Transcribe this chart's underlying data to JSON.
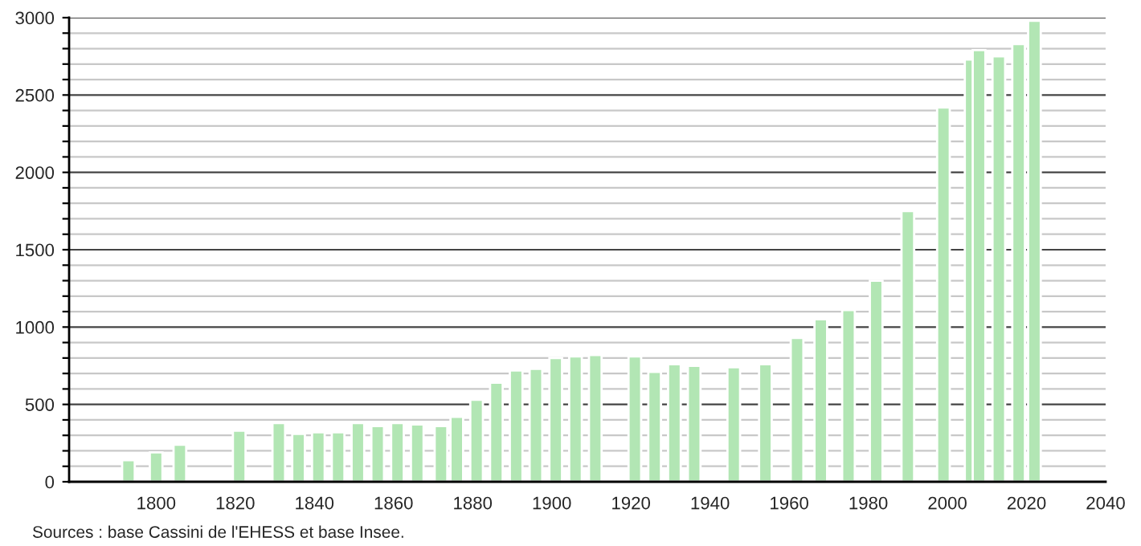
{
  "chart_data": {
    "type": "bar",
    "x": [
      1793,
      1800,
      1806,
      1821,
      1831,
      1836,
      1841,
      1846,
      1851,
      1856,
      1861,
      1866,
      1872,
      1876,
      1881,
      1886,
      1891,
      1896,
      1901,
      1906,
      1911,
      1921,
      1926,
      1931,
      1936,
      1946,
      1954,
      1962,
      1968,
      1975,
      1982,
      1990,
      1999,
      2006,
      2008,
      2013,
      2018,
      2022
    ],
    "values": [
      140,
      190,
      240,
      330,
      380,
      310,
      320,
      320,
      380,
      360,
      380,
      370,
      360,
      420,
      530,
      640,
      720,
      730,
      800,
      810,
      820,
      810,
      710,
      760,
      750,
      740,
      760,
      930,
      1050,
      1110,
      1300,
      1750,
      2420,
      2730,
      2790,
      2750,
      2830,
      2980
    ],
    "color": "#b2e6b4",
    "xlim": [
      1778,
      2040
    ],
    "xticks": [
      1800,
      1820,
      1840,
      1860,
      1880,
      1900,
      1920,
      1940,
      1960,
      1980,
      2000,
      2020,
      2040
    ],
    "ylim": [
      0,
      3000
    ],
    "yticks": [
      0,
      {
        "value": 100,
        "label": null
      },
      {
        "value": 200,
        "label": null
      },
      {
        "value": 300,
        "label": null
      },
      {
        "value": 400,
        "label": null
      },
      500,
      {
        "value": 600,
        "label": null
      },
      {
        "value": 700,
        "label": null
      },
      {
        "value": 800,
        "label": null
      },
      {
        "value": 900,
        "label": null
      },
      1000,
      {
        "value": 1100,
        "label": null
      },
      {
        "value": 1200,
        "label": null
      },
      {
        "value": 1300,
        "label": null
      },
      {
        "value": 1400,
        "label": null
      },
      1500,
      {
        "value": 1600,
        "label": null
      },
      {
        "value": 1700,
        "label": null
      },
      {
        "value": 1800,
        "label": null
      },
      {
        "value": 1900,
        "label": null
      },
      2000,
      {
        "value": 2100,
        "label": null
      },
      {
        "value": 2200,
        "label": null
      },
      {
        "value": 2300,
        "label": null
      },
      {
        "value": 2400,
        "label": null
      },
      2500,
      {
        "value": 2600,
        "label": null
      },
      {
        "value": 2700,
        "label": null
      },
      {
        "value": 2800,
        "label": null
      },
      {
        "value": 2900,
        "label": null
      },
      3000
    ],
    "grid": "y",
    "annotations": [
      "Sources : base Cassini de l'EHESS et base Insee."
    ]
  }
}
